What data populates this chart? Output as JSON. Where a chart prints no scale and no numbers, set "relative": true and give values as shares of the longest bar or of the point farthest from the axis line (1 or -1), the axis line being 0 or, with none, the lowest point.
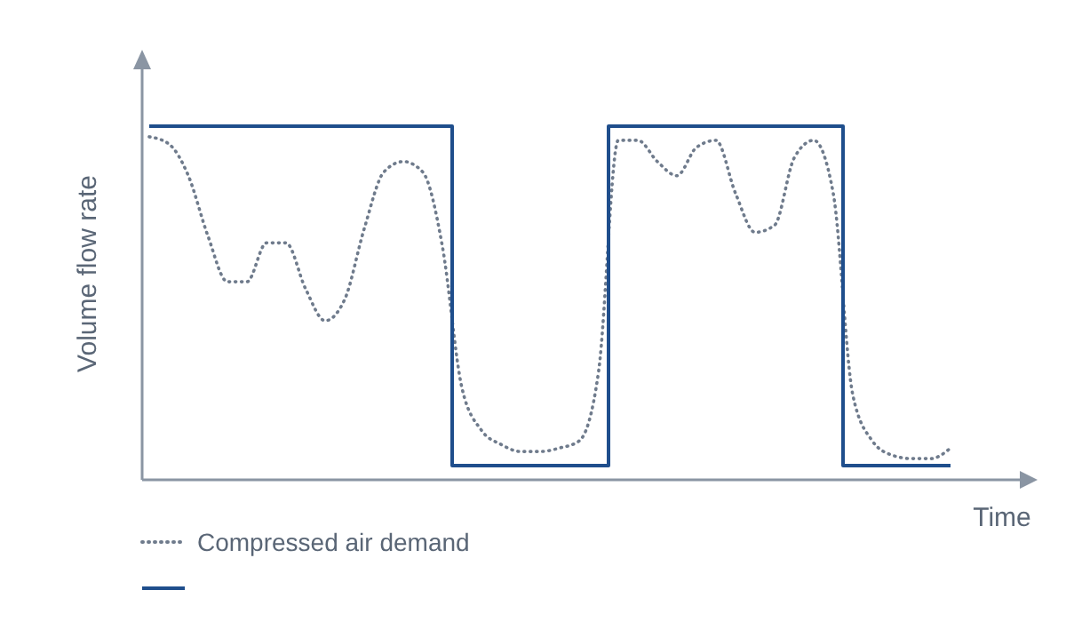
{
  "chart_data": {
    "type": "line",
    "relative": true,
    "xlabel": "Time",
    "ylabel": "Volume flow rate",
    "legend": "bottom left",
    "categories": [
      null,
      null,
      null,
      null,
      null,
      null,
      null,
      null,
      null,
      null,
      null,
      null,
      null,
      null,
      null,
      null,
      null,
      null,
      null,
      null,
      null,
      null,
      null,
      null,
      null,
      null,
      null,
      null,
      null,
      null,
      null,
      null,
      null,
      null,
      null,
      null,
      null,
      null,
      null,
      null,
      null,
      null
    ],
    "series": [
      {
        "name": "Compressed air demand",
        "line_style": "dotted",
        "color": "#6f7b8c",
        "values": [
          0.97,
          0.95,
          0.86,
          0.69,
          0.56,
          0.56,
          0.67,
          0.67,
          0.54,
          0.45,
          0.51,
          0.71,
          0.87,
          0.9,
          0.87,
          0.66,
          0.26,
          0.14,
          0.1,
          0.08,
          0.08,
          0.09,
          0.11,
          0.31,
          0.96,
          0.96,
          0.9,
          0.86,
          0.94,
          0.96,
          0.81,
          0.7,
          0.72,
          0.91,
          0.96,
          0.81,
          0.24,
          0.11,
          0.07,
          0.06,
          0.06,
          0.09
        ]
      },
      {
        "type": "step",
        "line_style": "solid",
        "color": "#1f4e8c",
        "values": [
          1,
          1,
          1,
          1,
          1,
          1,
          1,
          1,
          1,
          1,
          1,
          1,
          1,
          1,
          1,
          1,
          0.04,
          0.04,
          0.04,
          0.04,
          0.04,
          0.04,
          0.04,
          0.04,
          1,
          1,
          1,
          1,
          1,
          1,
          1,
          1,
          1,
          1,
          1,
          1,
          0.04,
          0.04,
          0.04,
          0.04,
          0.04,
          0.04
        ]
      }
    ]
  }
}
